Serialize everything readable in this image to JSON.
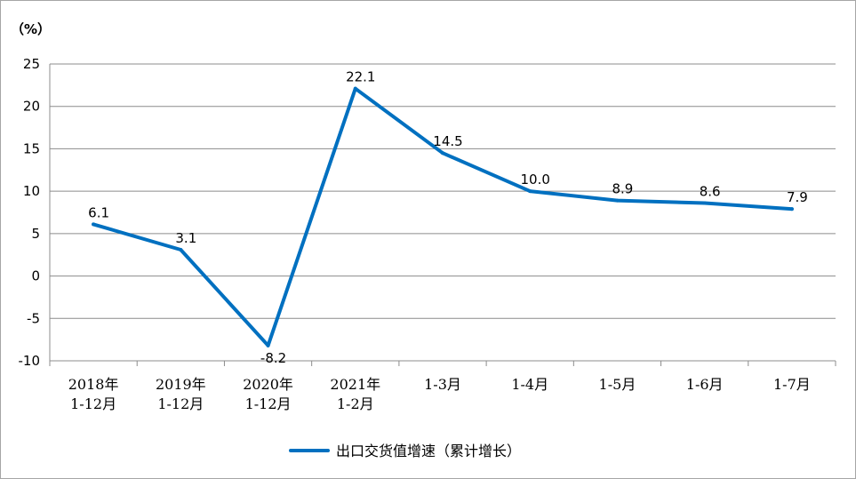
{
  "chart_data": {
    "type": "line",
    "unit_label": "（%）",
    "categories": [
      [
        "2018年",
        "1-12月"
      ],
      [
        "2019年",
        "1-12月"
      ],
      [
        "2020年",
        "1-12月"
      ],
      [
        "2021年",
        "1-2月"
      ],
      [
        "1-3月"
      ],
      [
        "1-4月"
      ],
      [
        "1-5月"
      ],
      [
        "1-6月"
      ],
      [
        "1-7月"
      ]
    ],
    "series": [
      {
        "name": "出口交货值增速（累计增长）",
        "color": "#0070c0",
        "values": [
          6.1,
          3.1,
          -8.2,
          22.1,
          14.5,
          10.0,
          8.9,
          8.6,
          7.9
        ],
        "labels": [
          "6.1",
          "3.1",
          "-8.2",
          "22.1",
          "14.5",
          "10.0",
          "8.9",
          "8.6",
          "7.9"
        ]
      }
    ],
    "ylim": [
      -10,
      25
    ],
    "yticks": [
      -10,
      -5,
      0,
      5,
      10,
      15,
      20,
      25
    ],
    "grid": true,
    "legend": "bottom"
  }
}
